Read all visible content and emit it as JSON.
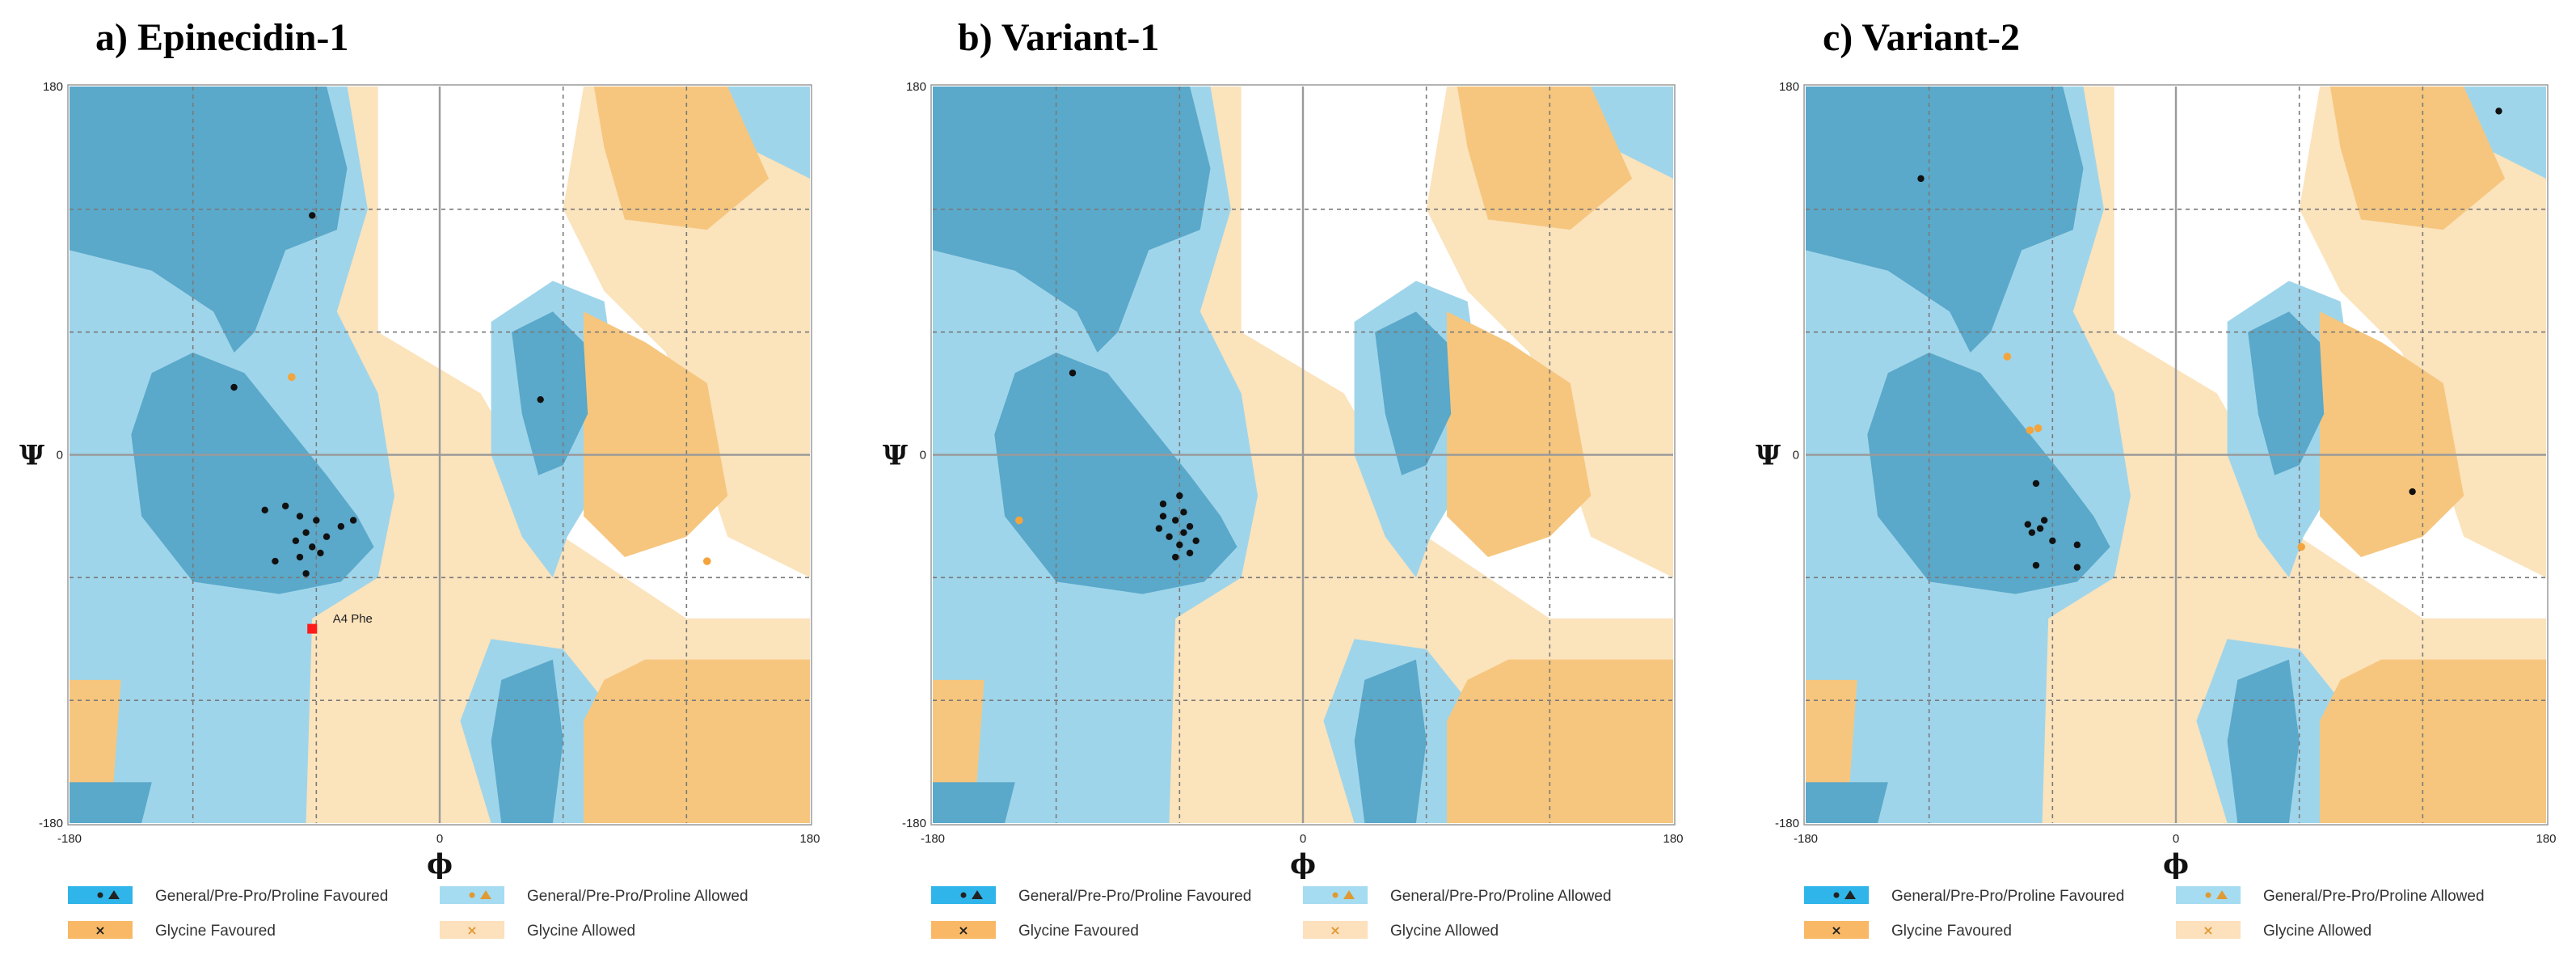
{
  "chart_data": [
    {
      "type": "scatter",
      "title": "a) Epinecidin-1",
      "xlabel": "ϕ",
      "ylabel": "Ψ",
      "xlim": [
        -180,
        180
      ],
      "ylim": [
        -180,
        180
      ],
      "xticks": [
        "-180",
        "0",
        "180"
      ],
      "yticks": [
        "180",
        "0",
        "-180"
      ],
      "grid": true,
      "series": [
        {
          "kind": "general",
          "points": [
            [
              -100,
              33
            ],
            [
              -62,
              117
            ],
            [
              -85,
              -27
            ],
            [
              -75,
              -25
            ],
            [
              -68,
              -30
            ],
            [
              -65,
              -38
            ],
            [
              -60,
              -32
            ],
            [
              -55,
              -40
            ],
            [
              -62,
              -45
            ],
            [
              -58,
              -48
            ],
            [
              -68,
              -50
            ],
            [
              -80,
              -52
            ],
            [
              -65,
              -58
            ],
            [
              -48,
              -35
            ],
            [
              -42,
              -32
            ],
            [
              -70,
              -42
            ],
            [
              49,
              27
            ]
          ]
        },
        {
          "kind": "glycine",
          "points": [
            [
              -72,
              38
            ],
            [
              130,
              -52
            ]
          ]
        },
        {
          "kind": "outlier",
          "points": [
            [
              -62,
              -85
            ]
          ]
        }
      ],
      "annotations": [
        {
          "text": "A4 Phe",
          "x": -52,
          "y": -82
        }
      ],
      "legend": [
        "General/Pre-Pro/Proline Favoured",
        "General/Pre-Pro/Proline Allowed",
        "Glycine Favoured",
        "Glycine Allowed"
      ]
    },
    {
      "type": "scatter",
      "title": "b) Variant-1",
      "xlabel": "ϕ",
      "ylabel": "Ψ",
      "xlim": [
        -180,
        180
      ],
      "ylim": [
        -180,
        180
      ],
      "xticks": [
        "-180",
        "0",
        "180"
      ],
      "yticks": [
        "180",
        "0",
        "-180"
      ],
      "grid": true,
      "series": [
        {
          "kind": "general",
          "points": [
            [
              -112,
              40
            ],
            [
              -68,
              -24
            ],
            [
              -68,
              -30
            ],
            [
              -62,
              -32
            ],
            [
              -58,
              -38
            ],
            [
              -65,
              -40
            ],
            [
              -60,
              -44
            ],
            [
              -55,
              -48
            ],
            [
              -62,
              -50
            ],
            [
              -58,
              -28
            ],
            [
              -55,
              -35
            ],
            [
              -70,
              -36
            ],
            [
              -60,
              -20
            ],
            [
              -52,
              -42
            ]
          ]
        },
        {
          "kind": "glycine",
          "points": [
            [
              -138,
              -32
            ]
          ]
        }
      ],
      "legend": [
        "General/Pre-Pro/Proline Favoured",
        "General/Pre-Pro/Proline Allowed",
        "Glycine Favoured",
        "Glycine Allowed"
      ]
    },
    {
      "type": "scatter",
      "title": "c) Variant-2",
      "xlabel": "ϕ",
      "ylabel": "Ψ",
      "xlim": [
        -180,
        180
      ],
      "ylim": [
        -180,
        180
      ],
      "xticks": [
        "-180",
        "0",
        "180"
      ],
      "yticks": [
        "180",
        "0",
        "-180"
      ],
      "grid": true,
      "series": [
        {
          "kind": "general",
          "points": [
            [
              -124,
              135
            ],
            [
              -68,
              -14
            ],
            [
              -72,
              -34
            ],
            [
              -66,
              -36
            ],
            [
              -70,
              -38
            ],
            [
              -64,
              -32
            ],
            [
              -60,
              -42
            ],
            [
              -68,
              -54
            ],
            [
              -48,
              -44
            ],
            [
              -48,
              -55
            ],
            [
              157,
              168
            ],
            [
              115,
              -18
            ]
          ]
        },
        {
          "kind": "glycine",
          "points": [
            [
              -82,
              48
            ],
            [
              -67,
              13
            ],
            [
              -71,
              12
            ],
            [
              61,
              -45
            ]
          ]
        }
      ],
      "legend": [
        "General/Pre-Pro/Proline Favoured",
        "General/Pre-Pro/Proline Allowed",
        "Glycine Favoured",
        "Glycine Allowed"
      ]
    }
  ],
  "colors": {
    "general_favoured": "#5aa8ca",
    "general_allowed": "#9fd5ea",
    "glycine_favoured": "#f6c67e",
    "glycine_allowed": "#fbe3bc",
    "outlier": "#ff1a1a"
  },
  "icons": [
    "general-favoured-marker-icon",
    "general-allowed-marker-icon",
    "glycine-favoured-marker-icon",
    "glycine-allowed-marker-icon"
  ]
}
